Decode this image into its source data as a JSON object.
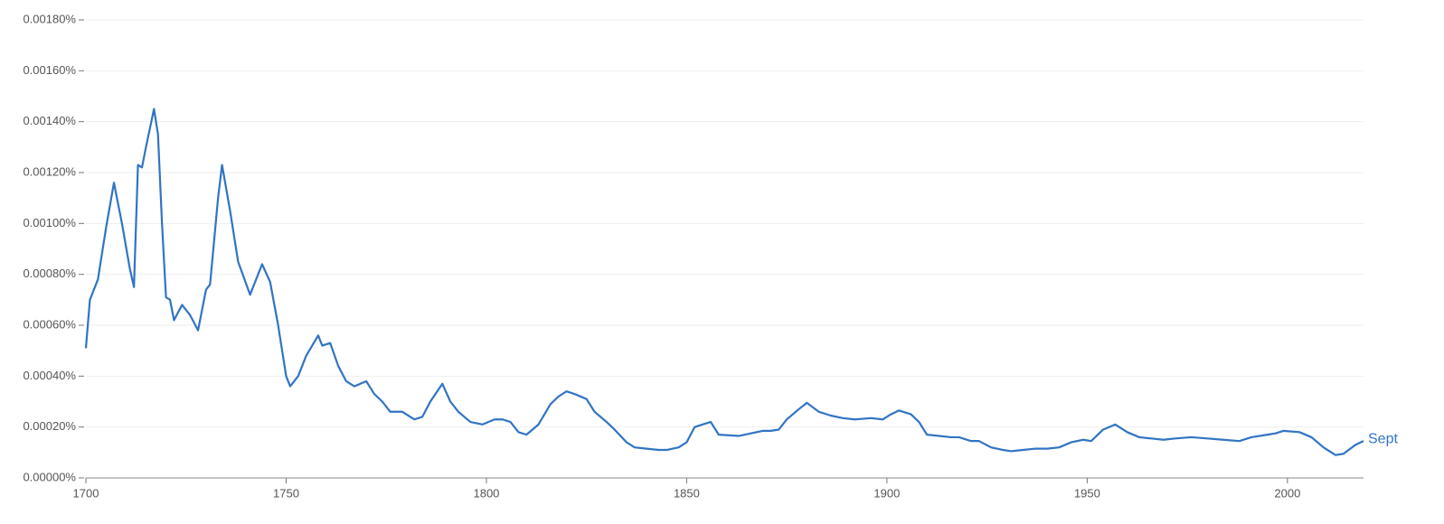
{
  "chart_data": {
    "type": "line",
    "x": [
      1700,
      1701,
      1703,
      1705,
      1707,
      1709,
      1711,
      1712,
      1713,
      1714,
      1715,
      1717,
      1718,
      1719,
      1720,
      1721,
      1722,
      1724,
      1726,
      1728,
      1730,
      1731,
      1733,
      1734,
      1736,
      1738,
      1741,
      1744,
      1746,
      1748,
      1750,
      1751,
      1753,
      1755,
      1758,
      1759,
      1761,
      1763,
      1765,
      1767,
      1770,
      1772,
      1774,
      1776,
      1779,
      1782,
      1784,
      1786,
      1789,
      1791,
      1793,
      1796,
      1799,
      1802,
      1804,
      1806,
      1808,
      1810,
      1813,
      1816,
      1818,
      1820,
      1822,
      1825,
      1827,
      1830,
      1832,
      1835,
      1837,
      1840,
      1843,
      1845,
      1848,
      1850,
      1852,
      1854,
      1856,
      1858,
      1863,
      1866,
      1869,
      1871,
      1873,
      1875,
      1878,
      1880,
      1883,
      1886,
      1889,
      1892,
      1896,
      1899,
      1901,
      1903,
      1906,
      1908,
      1910,
      1913,
      1916,
      1918,
      1921,
      1923,
      1926,
      1929,
      1931,
      1934,
      1937,
      1940,
      1943,
      1946,
      1949,
      1951,
      1954,
      1957,
      1960,
      1963,
      1966,
      1969,
      1972,
      1976,
      1980,
      1984,
      1988,
      1991,
      1995,
      1997,
      1999,
      2003,
      2006,
      2009,
      2012,
      2014,
      2017,
      2019
    ],
    "series": [
      {
        "name": "Sept",
        "color": "#3174c3",
        "values": [
          0.00051,
          0.0007,
          0.00078,
          0.00098,
          0.00116,
          0.001,
          0.00082,
          0.00075,
          0.00123,
          0.00122,
          0.0013,
          0.00145,
          0.00135,
          0.001,
          0.00071,
          0.0007,
          0.00062,
          0.00068,
          0.00064,
          0.00058,
          0.00074,
          0.00076,
          0.0011,
          0.00123,
          0.00105,
          0.00085,
          0.00072,
          0.00084,
          0.00077,
          0.0006,
          0.0004,
          0.00036,
          0.0004,
          0.00048,
          0.00056,
          0.00052,
          0.00053,
          0.00044,
          0.00038,
          0.00036,
          0.00038,
          0.00033,
          0.0003,
          0.00026,
          0.00026,
          0.00023,
          0.00024,
          0.0003,
          0.00037,
          0.0003,
          0.00026,
          0.00022,
          0.00021,
          0.00023,
          0.00023,
          0.00022,
          0.00018,
          0.00017,
          0.00021,
          0.00029,
          0.00032,
          0.00034,
          0.00033,
          0.00031,
          0.00026,
          0.00022,
          0.00019,
          0.00014,
          0.00012,
          0.000115,
          0.00011,
          0.00011,
          0.00012,
          0.00014,
          0.0002,
          0.00021,
          0.00022,
          0.00017,
          0.000165,
          0.000175,
          0.000185,
          0.000185,
          0.00019,
          0.00023,
          0.00027,
          0.000295,
          0.00026,
          0.000245,
          0.000235,
          0.00023,
          0.000235,
          0.00023,
          0.00025,
          0.000265,
          0.00025,
          0.00022,
          0.00017,
          0.000165,
          0.00016,
          0.00016,
          0.000145,
          0.000145,
          0.00012,
          0.00011,
          0.000105,
          0.00011,
          0.000115,
          0.000115,
          0.00012,
          0.00014,
          0.00015,
          0.000145,
          0.00019,
          0.00021,
          0.00018,
          0.00016,
          0.000155,
          0.00015,
          0.000155,
          0.00016,
          0.000155,
          0.00015,
          0.000145,
          0.00016,
          0.00017,
          0.000175,
          0.000185,
          0.00018,
          0.00016,
          0.00012,
          9e-05,
          9.5e-05,
          0.00013,
          0.000145
        ]
      }
    ],
    "xlim": [
      1700,
      2019
    ],
    "xticks": [
      1700,
      1750,
      1800,
      1850,
      1900,
      1950,
      2000
    ],
    "ylim": [
      0,
      0.0018
    ],
    "yticks": [
      {
        "value": 0,
        "label": "0.00000%"
      },
      {
        "value": 0.0002,
        "label": "0.00020%"
      },
      {
        "value": 0.0004,
        "label": "0.00040%"
      },
      {
        "value": 0.0006,
        "label": "0.00060%"
      },
      {
        "value": 0.0008,
        "label": "0.00080%"
      },
      {
        "value": 0.001,
        "label": "0.00100%"
      },
      {
        "value": 0.0012,
        "label": "0.00120%"
      },
      {
        "value": 0.0014,
        "label": "0.00140%"
      },
      {
        "value": 0.0016,
        "label": "0.00160%"
      },
      {
        "value": 0.0018,
        "label": "0.00180%"
      }
    ],
    "grid": true
  }
}
